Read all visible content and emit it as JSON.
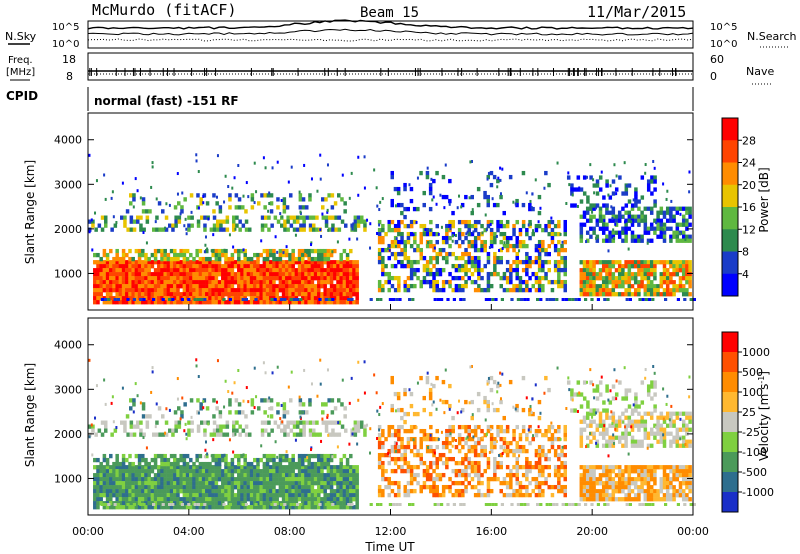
{
  "header": {
    "station": "McMurdo (fitACF)",
    "beam": "Beam 15",
    "date": "11/Mar/2015"
  },
  "panels": {
    "nsky": {
      "label": "N.Sky",
      "right_label": "N.Search",
      "left_ticks": [
        "10^5",
        "10^0"
      ],
      "right_ticks": [
        "10^5",
        "10^0"
      ]
    },
    "freq": {
      "label_line1": "Freq.",
      "label_line2": "[MHz]",
      "left_ticks": [
        "18",
        "8"
      ],
      "right_ticks": [
        "60",
        "0"
      ],
      "right_label": "Nave"
    },
    "cpid": {
      "label": "CPID",
      "text": "normal (fast) -151 RF"
    }
  },
  "chart_data": [
    {
      "type": "heatmap",
      "ylabel": "Slant Range [km]",
      "xlabel": "",
      "yticks": [
        "1000",
        "2000",
        "3000",
        "4000"
      ],
      "ylim": [
        180,
        4600
      ],
      "xlim": [
        0,
        24
      ],
      "colorbar": {
        "label": "Power [dB]",
        "ticks": [
          "4",
          "8",
          "12",
          "16",
          "20",
          "24",
          "28"
        ],
        "colors": [
          "#0000ff",
          "#1a3cc8",
          "#2d8a4e",
          "#5fb840",
          "#e8c400",
          "#ff8c00",
          "#ff4400",
          "#ff0000"
        ],
        "range": [
          0,
          32
        ]
      }
    },
    {
      "type": "heatmap",
      "ylabel": "Slant Range [km]",
      "xlabel": "Time UT",
      "yticks": [
        "1000",
        "2000",
        "3000",
        "4000"
      ],
      "xticks": [
        "00:00",
        "04:00",
        "08:00",
        "12:00",
        "16:00",
        "20:00",
        "00:00"
      ],
      "ylim": [
        180,
        4600
      ],
      "xlim": [
        0,
        24
      ],
      "colorbar": {
        "label": "Velocity [m s^-1]",
        "ticks": [
          "1000",
          "500",
          "100",
          "25",
          "-25",
          "-100",
          "-500",
          "-1000"
        ],
        "colors": [
          "#1a2fc8",
          "#2e6e8e",
          "#4b9a5a",
          "#7fd040",
          "#c8c8c0",
          "#ffb830",
          "#ff8c00",
          "#ff5000",
          "#ff0000"
        ]
      }
    }
  ]
}
